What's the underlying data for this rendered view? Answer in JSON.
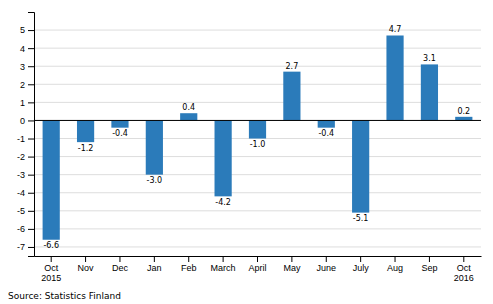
{
  "chart_data": {
    "type": "bar",
    "categories": [
      "Oct\n2015",
      "Nov",
      "Dec",
      "Jan",
      "Feb",
      "March",
      "April",
      "May",
      "June",
      "July",
      "Aug",
      "Sep",
      "Oct\n2016"
    ],
    "values": [
      -6.6,
      -1.2,
      -0.4,
      -3.0,
      0.4,
      -4.2,
      -1.0,
      2.7,
      -0.4,
      -5.1,
      4.7,
      3.1,
      0.2
    ],
    "value_labels": [
      "-6.6",
      "-1.2",
      "-0.4",
      "-3.0",
      "0.4",
      "-4.2",
      "-1.0",
      "2.7",
      "-0.4",
      "-5.1",
      "4.7",
      "3.1",
      "0.2"
    ],
    "color": "#2b7bba",
    "ylim": [
      -7.5,
      6.0
    ],
    "yticks": [
      -7,
      -6,
      -5,
      -4,
      -3,
      -2,
      -1,
      0,
      1,
      2,
      3,
      4,
      5
    ],
    "grid": true,
    "data_labels": true,
    "annotations": [
      "Source: Statistics Finland"
    ]
  }
}
